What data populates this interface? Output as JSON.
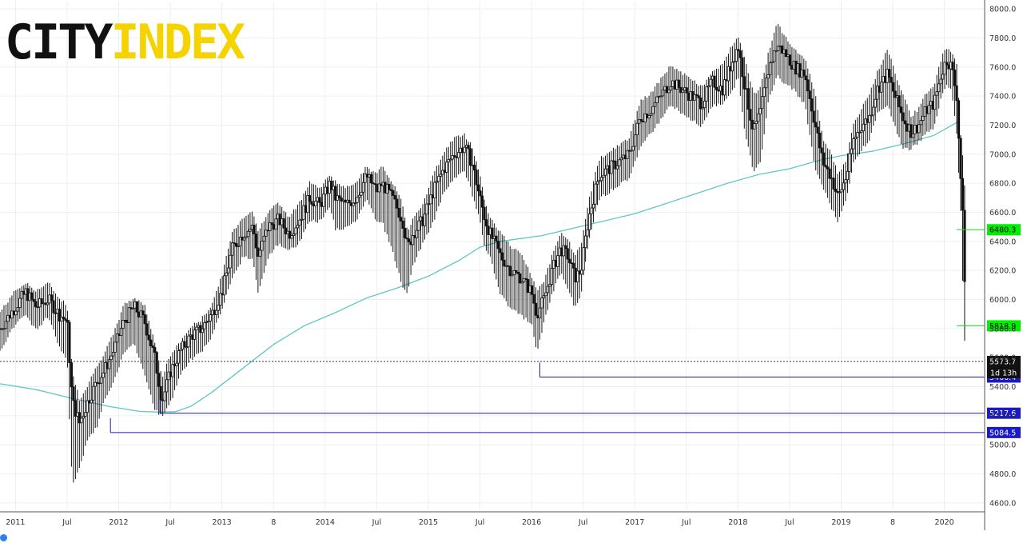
{
  "logo": {
    "part1": "CITY",
    "part2": "INDEX"
  },
  "colors": {
    "candle": "#111111",
    "ma_line": "#5fc8c0",
    "grid": "#eceff2",
    "support_line": "#1a1ab8",
    "green_tag": "#00ee00",
    "black_tag": "#111111",
    "blue_tag": "#1a1acc"
  },
  "chart_data": {
    "type": "line",
    "instrument_note": "weekly candlesticks",
    "ylim": [
      4550,
      8050
    ],
    "y_ticks": [
      "8000.0",
      "7800.0",
      "7600.0",
      "7400.0",
      "7200.0",
      "7000.0",
      "6800.0",
      "6600.0",
      "6400.0",
      "6200.0",
      "6000.0",
      "5800.0",
      "5600.0",
      "5400.0",
      "5200.0",
      "5000.0",
      "4800.0",
      "4600.0"
    ],
    "x_tick_labels": [
      {
        "label": "2011",
        "t": 2011.0
      },
      {
        "label": "Jul",
        "t": 2011.5
      },
      {
        "label": "2012",
        "t": 2012.0
      },
      {
        "label": "Jul",
        "t": 2012.5
      },
      {
        "label": "2013",
        "t": 2013.0
      },
      {
        "label": "8",
        "t": 2013.5
      },
      {
        "label": "2014",
        "t": 2014.0
      },
      {
        "label": "Jul",
        "t": 2014.5
      },
      {
        "label": "2015",
        "t": 2015.0
      },
      {
        "label": "Jul",
        "t": 2015.5
      },
      {
        "label": "2016",
        "t": 2016.0
      },
      {
        "label": "Jul",
        "t": 2016.5
      },
      {
        "label": "2017",
        "t": 2017.0
      },
      {
        "label": "Jul",
        "t": 2017.5
      },
      {
        "label": "2018",
        "t": 2018.0
      },
      {
        "label": "Jul",
        "t": 2018.5
      },
      {
        "label": "2019",
        "t": 2019.0
      },
      {
        "label": "8",
        "t": 2019.5
      },
      {
        "label": "2020",
        "t": 2020.0
      }
    ],
    "price_series": {
      "t": [
        2010.85,
        2011.0,
        2011.1,
        2011.2,
        2011.32,
        2011.42,
        2011.5,
        2011.55,
        2011.62,
        2011.7,
        2011.8,
        2011.85,
        2011.95,
        2012.05,
        2012.15,
        2012.25,
        2012.35,
        2012.42,
        2012.5,
        2012.6,
        2012.7,
        2012.8,
        2012.9,
        2013.0,
        2013.1,
        2013.2,
        2013.3,
        2013.35,
        2013.45,
        2013.55,
        2013.65,
        2013.75,
        2013.85,
        2013.95,
        2014.05,
        2014.1,
        2014.2,
        2014.3,
        2014.4,
        2014.5,
        2014.55,
        2014.65,
        2014.75,
        2014.8,
        2014.85,
        2014.95,
        2015.05,
        2015.15,
        2015.25,
        2015.35,
        2015.42,
        2015.5,
        2015.55,
        2015.6,
        2015.7,
        2015.8,
        2015.9,
        2016.0,
        2016.05,
        2016.12,
        2016.2,
        2016.28,
        2016.35,
        2016.42,
        2016.48,
        2016.55,
        2016.65,
        2016.75,
        2016.85,
        2016.95,
        2017.05,
        2017.15,
        2017.25,
        2017.35,
        2017.45,
        2017.55,
        2017.65,
        2017.75,
        2017.85,
        2017.95,
        2018.0,
        2018.07,
        2018.15,
        2018.22,
        2018.3,
        2018.38,
        2018.45,
        2018.55,
        2018.65,
        2018.75,
        2018.82,
        2018.9,
        2018.97,
        2019.05,
        2019.12,
        2019.2,
        2019.27,
        2019.35,
        2019.45,
        2019.52,
        2019.6,
        2019.68,
        2019.75,
        2019.82,
        2019.9,
        2019.97,
        2020.02,
        2020.07,
        2020.12,
        2020.16,
        2020.19,
        2020.21
      ],
      "close": [
        5800,
        5950,
        6050,
        5950,
        6000,
        5900,
        5850,
        5300,
        5150,
        5300,
        5450,
        5500,
        5650,
        5850,
        5950,
        5850,
        5600,
        5300,
        5500,
        5650,
        5750,
        5800,
        5900,
        6050,
        6350,
        6450,
        6500,
        6300,
        6500,
        6550,
        6450,
        6550,
        6700,
        6650,
        6800,
        6700,
        6650,
        6700,
        6850,
        6750,
        6800,
        6700,
        6550,
        6350,
        6450,
        6550,
        6750,
        6900,
        7000,
        7050,
        6950,
        6700,
        6550,
        6450,
        6300,
        6200,
        6150,
        6050,
        5900,
        6000,
        6200,
        6350,
        6300,
        6150,
        6200,
        6550,
        6850,
        6900,
        6950,
        7000,
        7250,
        7300,
        7400,
        7500,
        7450,
        7400,
        7350,
        7500,
        7450,
        7650,
        7750,
        7450,
        7150,
        7300,
        7600,
        7750,
        7700,
        7600,
        7550,
        7200,
        6950,
        6850,
        6700,
        6850,
        7100,
        7200,
        7250,
        7450,
        7550,
        7400,
        7250,
        7150,
        7200,
        7300,
        7350,
        7550,
        7650,
        7600,
        7400,
        6800,
        6400,
        5600
      ],
      "high": [
        5900,
        6050,
        6100,
        6050,
        6100,
        6000,
        5950,
        5500,
        5300,
        5400,
        5550,
        5600,
        5750,
        5950,
        6000,
        5950,
        5700,
        5450,
        5600,
        5700,
        5800,
        5850,
        5950,
        6150,
        6450,
        6550,
        6600,
        6450,
        6600,
        6650,
        6550,
        6650,
        6800,
        6750,
        6850,
        6800,
        6750,
        6800,
        6900,
        6850,
        6900,
        6800,
        6650,
        6450,
        6550,
        6650,
        6850,
        7000,
        7100,
        7120,
        7050,
        6850,
        6650,
        6550,
        6450,
        6350,
        6300,
        6150,
        6050,
        6100,
        6300,
        6450,
        6400,
        6300,
        6350,
        6650,
        6950,
        7000,
        7050,
        7100,
        7350,
        7400,
        7500,
        7600,
        7550,
        7500,
        7450,
        7550,
        7600,
        7750,
        7800,
        7650,
        7400,
        7450,
        7700,
        7900,
        7800,
        7700,
        7650,
        7400,
        7100,
        7000,
        6850,
        6950,
        7200,
        7300,
        7400,
        7550,
        7720,
        7550,
        7400,
        7250,
        7300,
        7400,
        7450,
        7650,
        7720,
        7700,
        7600,
        7100,
        6900,
        6480
      ],
      "low": [
        5650,
        5850,
        5900,
        5800,
        5900,
        5700,
        5600,
        4720,
        4850,
        5050,
        5150,
        5300,
        5450,
        5650,
        5700,
        5500,
        5250,
        5210,
        5300,
        5500,
        5600,
        5650,
        5750,
        5950,
        6150,
        6300,
        6300,
        6050,
        6300,
        6400,
        6350,
        6400,
        6550,
        6550,
        6650,
        6500,
        6500,
        6550,
        6700,
        6550,
        6550,
        6350,
        6100,
        6050,
        6250,
        6400,
        6550,
        6750,
        6850,
        6900,
        6750,
        6550,
        6350,
        6300,
        6050,
        5950,
        5900,
        5850,
        5650,
        5850,
        6050,
        6200,
        6100,
        5950,
        6050,
        6400,
        6700,
        6750,
        6800,
        6850,
        7050,
        7150,
        7250,
        7350,
        7300,
        7250,
        7200,
        7350,
        7350,
        7450,
        7550,
        7150,
        6900,
        6950,
        7400,
        7550,
        7500,
        7450,
        7350,
        6900,
        6800,
        6650,
        6550,
        6700,
        6950,
        7050,
        7100,
        7300,
        7350,
        7200,
        7050,
        7050,
        7100,
        7150,
        7200,
        7400,
        7500,
        7450,
        7150,
        6600,
        5800,
        5530
      ]
    },
    "moving_average": {
      "name": "",
      "t": [
        2010.85,
        2011.2,
        2011.55,
        2011.9,
        2012.2,
        2012.4,
        2012.55,
        2012.7,
        2012.9,
        2013.1,
        2013.3,
        2013.5,
        2013.8,
        2014.1,
        2014.4,
        2014.7,
        2015.0,
        2015.3,
        2015.5,
        2015.7,
        2015.9,
        2016.1,
        2016.4,
        2016.7,
        2017.0,
        2017.3,
        2017.6,
        2017.9,
        2018.2,
        2018.5,
        2018.8,
        2019.0,
        2019.3,
        2019.6,
        2019.9,
        2020.05,
        2020.15
      ],
      "values": [
        5420,
        5380,
        5320,
        5265,
        5230,
        5225,
        5228,
        5265,
        5360,
        5470,
        5580,
        5690,
        5820,
        5910,
        6010,
        6080,
        6160,
        6270,
        6360,
        6400,
        6420,
        6440,
        6490,
        6540,
        6590,
        6660,
        6730,
        6800,
        6860,
        6900,
        6960,
        6990,
        7020,
        7070,
        7130,
        7190,
        7230
      ]
    },
    "horizontal_levels": [
      {
        "label": "6480.3",
        "value": 6480.3,
        "tag": "green",
        "line_from_t": 2020.12
      },
      {
        "label": "5818.9",
        "value": 5818.9,
        "tag": "green",
        "line_from_t": 2020.12
      },
      {
        "label": "5573.7",
        "value": 5573.7,
        "tag": "black",
        "style": "dotted",
        "line_from_t": 2010.85
      },
      {
        "label": "5466.4",
        "value": 5466.4,
        "tag": "blue",
        "line_from_t": 2016.08
      },
      {
        "label": "5217.6",
        "value": 5217.6,
        "tag": "blue",
        "line_from_t": 2012.4
      },
      {
        "label": "5084.5",
        "value": 5084.5,
        "tag": "blue",
        "line_from_t": 2011.92
      }
    ],
    "countdown_label": "1d 13h"
  }
}
